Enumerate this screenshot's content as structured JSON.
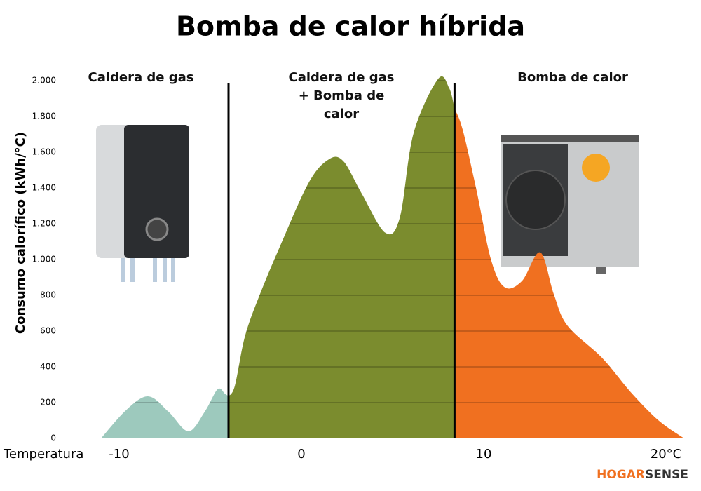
{
  "chart_data": {
    "type": "area",
    "title": "Bomba de calor híbrida",
    "y_label": "Consumo calorífico (kWh/°C)",
    "x_label": "Temperatura",
    "xlim": [
      -11,
      21
    ],
    "ylim": [
      0,
      2000
    ],
    "xticks": [
      -10,
      0,
      10,
      {
        "value": 20,
        "label": "20°C"
      }
    ],
    "yticks": [
      0,
      200,
      400,
      600,
      800,
      {
        "value": 1000,
        "label": "1.000"
      },
      {
        "value": 1200,
        "label": "1.200"
      },
      {
        "value": 1400,
        "label": "1.400"
      },
      {
        "value": 1600,
        "label": "1.600"
      },
      {
        "value": 1800,
        "label": "1.800"
      },
      {
        "value": 2000,
        "label": "2.000"
      }
    ],
    "grid": true,
    "dividers": [
      -4,
      8.4
    ],
    "series": [
      {
        "name": "Caldera de gas",
        "color": "#9dc9bd",
        "x": [
          -11,
          -9.6,
          -8.4,
          -7.3,
          -6.2,
          -5.3,
          -4.6,
          -4.2,
          -4
        ],
        "values": [
          0,
          160,
          235,
          150,
          40,
          150,
          275,
          250,
          235
        ]
      },
      {
        "name": "Caldera de gas + Bomba de calor",
        "color": "#7b8c2e",
        "x": [
          -4,
          -3.65,
          -3.1,
          -2.3,
          -1.15,
          0.4,
          1.5,
          2.3,
          3.3,
          4.6,
          5.4,
          6.15,
          7.5,
          8.1,
          8.4
        ],
        "values": [
          235,
          295,
          570,
          800,
          1080,
          1430,
          1560,
          1550,
          1370,
          1150,
          1235,
          1705,
          2010,
          1960,
          1845
        ]
      },
      {
        "name": "Bomba de calor",
        "color": "#f07020",
        "x": [
          8.4,
          8.85,
          9.6,
          10.4,
          11.15,
          12.1,
          13.1,
          13.85,
          14.6,
          16.5,
          18.1,
          19.6,
          21
        ],
        "values": [
          1845,
          1725,
          1390,
          1000,
          845,
          880,
          1040,
          805,
          630,
          450,
          255,
          100,
          0
        ]
      }
    ],
    "brand": [
      "HOGAR",
      "SENSE"
    ]
  }
}
